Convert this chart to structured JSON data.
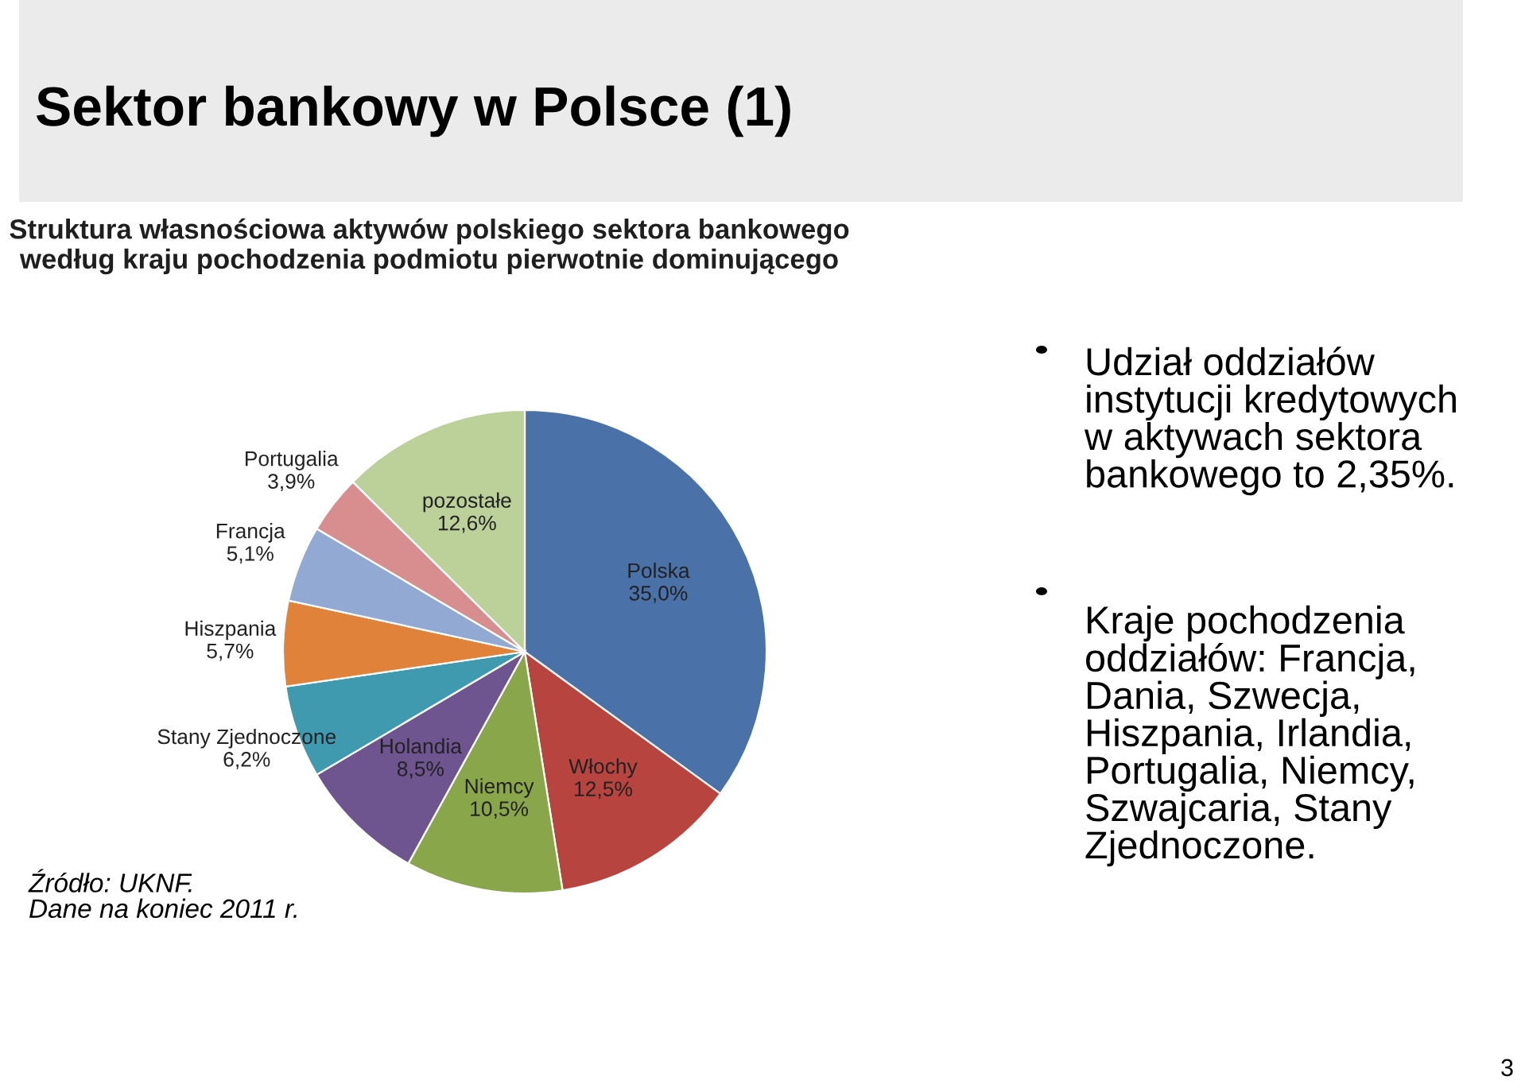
{
  "chart_data": {
    "type": "pie",
    "title": "Sektor bankowy w Polsce (1)",
    "subtitle": "Struktura własnościowa aktywów polskiego sektora bankowego\nwedług kraju pochodzenia podmiotu pierwotnie dominującego",
    "categories": [
      "Polska",
      "Włochy",
      "Niemcy",
      "Holandia",
      "Stany Zjednoczone",
      "Hiszpania",
      "Francja",
      "Portugalia",
      "pozostałe"
    ],
    "values": [
      35.0,
      12.5,
      10.5,
      8.5,
      6.2,
      5.7,
      5.1,
      3.9,
      12.6
    ],
    "value_labels": [
      "35,0%",
      "12,5%",
      "10,5%",
      "8,5%",
      "6,2%",
      "5,7%",
      "5,1%",
      "3,9%",
      "12,6%"
    ],
    "colors": [
      "#4a72a8",
      "#b84440",
      "#8aa64a",
      "#6e5590",
      "#3f9ab0",
      "#e0823a",
      "#92a9d4",
      "#d88e8e",
      "#bcd09a"
    ],
    "legend": false,
    "annotations": [
      "Źródło: UKNF.\nDane na koniec 2011 r.",
      "Udział oddziałów\ninstytucji kredytowych\nw aktywach sektora\nbankowego to 2,35%.",
      "Kraje pochodzenia\noddziałów: Francja,\nDania, Szwecja,\nHiszpania, Irlandia,\nPortugalia, Niemcy,\nSzwajcaria, Stany\nZjednoczone.",
      "3"
    ]
  }
}
